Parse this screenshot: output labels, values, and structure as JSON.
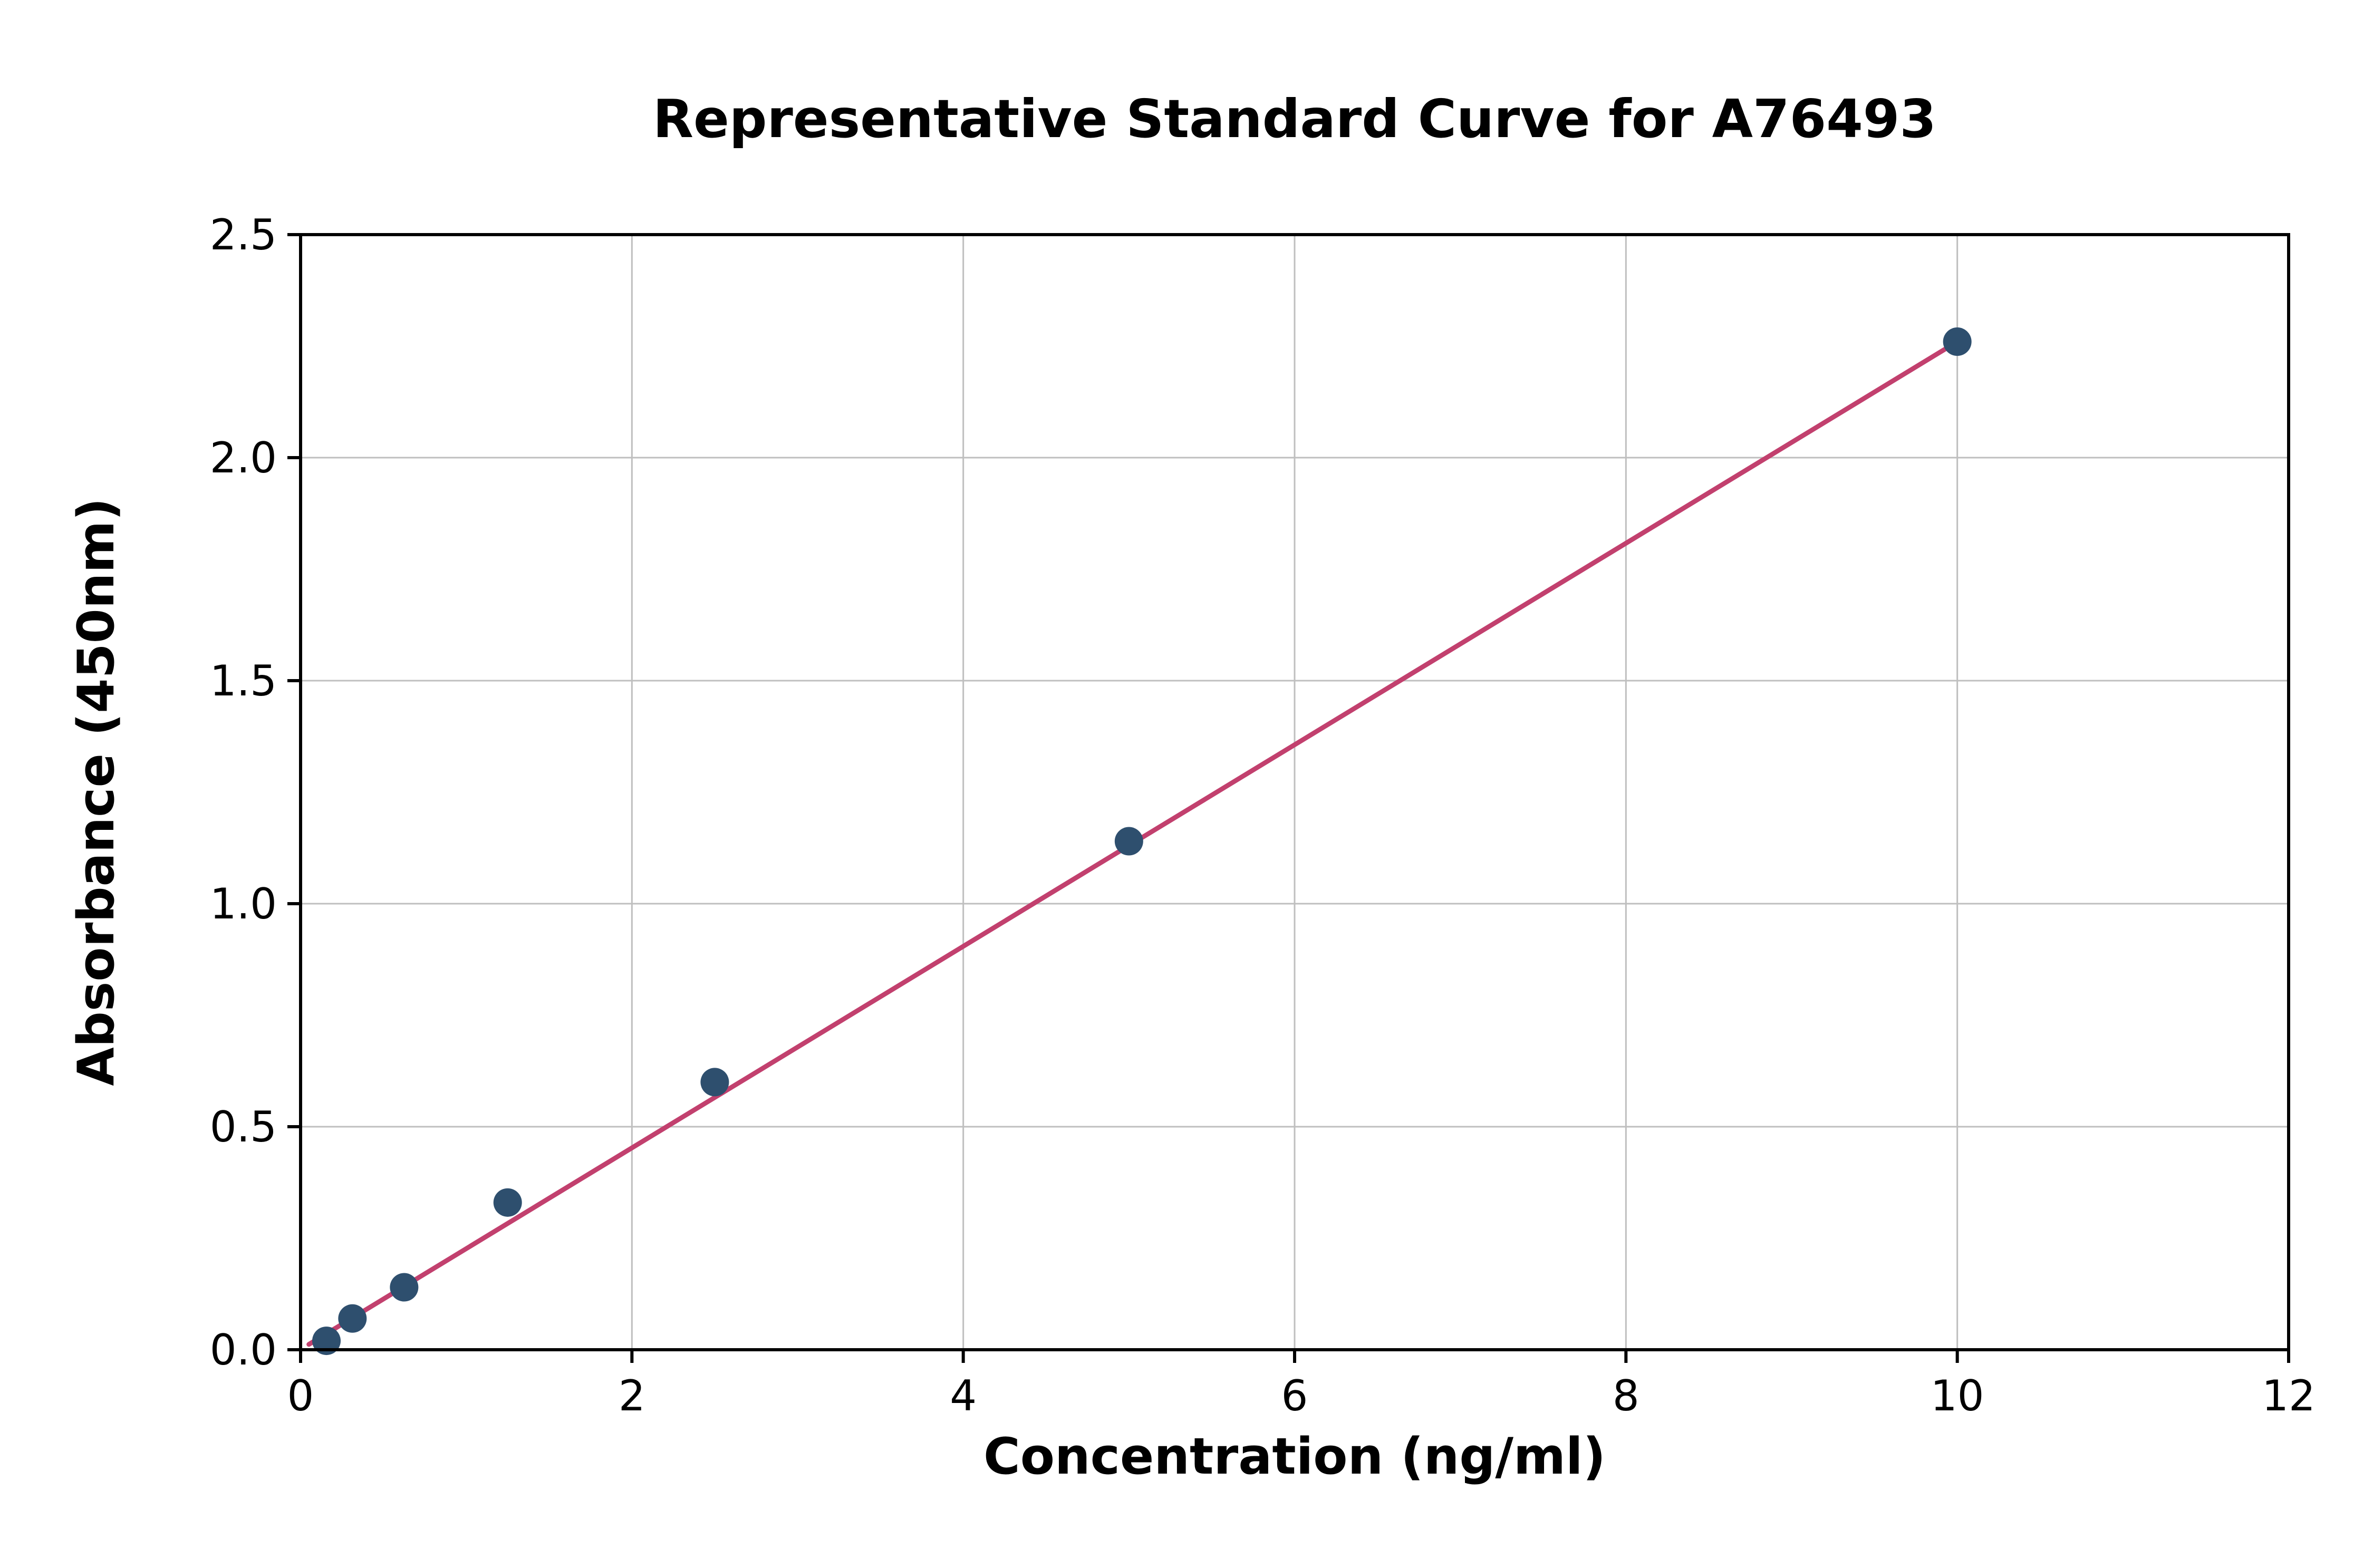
{
  "chart_data": {
    "type": "scatter",
    "title": "Representative Standard Curve for A76493",
    "xlabel": "Concentration (ng/ml)",
    "ylabel": "Absorbance (450nm)",
    "xlim": [
      0,
      12
    ],
    "ylim": [
      0,
      2.5
    ],
    "xticks": [
      0,
      2,
      4,
      6,
      8,
      10,
      12
    ],
    "xtick_labels": [
      "0",
      "2",
      "4",
      "6",
      "8",
      "10",
      "12"
    ],
    "yticks": [
      0.0,
      0.5,
      1.0,
      1.5,
      2.0,
      2.5
    ],
    "ytick_labels": [
      "0.0",
      "0.5",
      "1.0",
      "1.5",
      "2.0",
      "2.5"
    ],
    "grid": true,
    "legend": "none",
    "points": [
      {
        "x": 0.156,
        "y": 0.02
      },
      {
        "x": 0.313,
        "y": 0.07
      },
      {
        "x": 0.625,
        "y": 0.14
      },
      {
        "x": 1.25,
        "y": 0.33
      },
      {
        "x": 2.5,
        "y": 0.6
      },
      {
        "x": 5.0,
        "y": 1.14
      },
      {
        "x": 10.0,
        "y": 2.26
      }
    ],
    "trendline": {
      "x1": 0.05,
      "y1": 0.012,
      "x2": 10.0,
      "y2": 2.26
    },
    "colors": {
      "point": "#2e4f6e",
      "line": "#c2406e",
      "grid": "#bfbfbf",
      "axis": "#000000",
      "text": "#000000",
      "background": "#ffffff"
    }
  }
}
